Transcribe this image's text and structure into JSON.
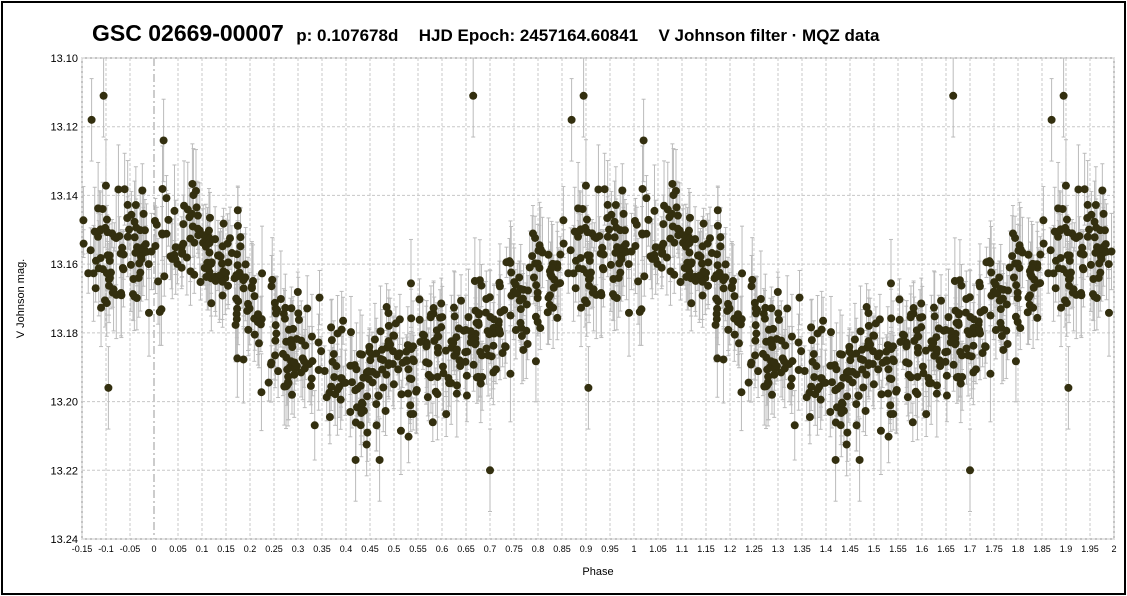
{
  "chart_data": {
    "type": "scatter",
    "title": "GSC 02669-00007",
    "subtitle_parts": [
      "p: 0.107678d",
      "HJD Epoch: 2457164.60841",
      "V Johnson filter  · MQZ data"
    ],
    "xlabel": "Phase",
    "ylabel": "V Johnson mag.",
    "xlim": [
      -0.15,
      2.0
    ],
    "ylim": [
      13.1,
      13.24
    ],
    "y_inverted": true,
    "y_ticks": [
      "13.10",
      "13.12",
      "13.14",
      "13.16",
      "13.18",
      "13.20",
      "13.22",
      "13.24"
    ],
    "x_ticks": [
      "-0.15",
      "-0.1",
      "-0.05",
      "0",
      "0.05",
      "0.1",
      "0.15",
      "0.2",
      "0.25",
      "0.3",
      "0.35",
      "0.4",
      "0.45",
      "0.5",
      "0.55",
      "0.6",
      "0.65",
      "0.7",
      "0.75",
      "0.8",
      "0.85",
      "0.9",
      "0.95",
      "1",
      "1.05",
      "1.1",
      "1.15",
      "1.2",
      "1.25",
      "1.3",
      "1.35",
      "1.4",
      "1.45",
      "1.5",
      "1.55",
      "1.6",
      "1.65",
      "1.7",
      "1.75",
      "1.8",
      "1.85",
      "1.9",
      "1.95",
      "2"
    ],
    "grid": true,
    "marker_color": "#332f0f",
    "errorbar_color": "#bbbbbb",
    "series": [
      {
        "phase_values": [
          0.0,
          0.02,
          0.04,
          0.06,
          0.08,
          0.1,
          0.12,
          0.14,
          0.16,
          0.18,
          0.2,
          0.22,
          0.24,
          0.26,
          0.28,
          0.3,
          0.32,
          0.34,
          0.36,
          0.38,
          0.4,
          0.42,
          0.44,
          0.46,
          0.48,
          0.5,
          0.52,
          0.54,
          0.56,
          0.58,
          0.6,
          0.62,
          0.64,
          0.66,
          0.68,
          0.7,
          0.72,
          0.74,
          0.76,
          0.78,
          0.8,
          0.82,
          0.84,
          0.86,
          0.88,
          0.9,
          0.92,
          0.94,
          0.96,
          0.98
        ],
        "mean_mag": [
          13.158,
          13.156,
          13.154,
          13.152,
          13.152,
          13.153,
          13.155,
          13.158,
          13.162,
          13.166,
          13.17,
          13.174,
          13.178,
          13.181,
          13.184,
          13.186,
          13.188,
          13.19,
          13.191,
          13.192,
          13.192,
          13.192,
          13.191,
          13.19,
          13.189,
          13.188,
          13.187,
          13.186,
          13.186,
          13.186,
          13.186,
          13.186,
          13.185,
          13.184,
          13.182,
          13.18,
          13.177,
          13.174,
          13.171,
          13.168,
          13.165,
          13.162,
          13.16,
          13.158,
          13.157,
          13.156,
          13.156,
          13.156,
          13.157,
          13.158
        ],
        "outliers": [
          {
            "x": -0.105,
            "y": 13.111
          },
          {
            "x": 0.665,
            "y": 13.111
          },
          {
            "x": -0.13,
            "y": 13.118
          },
          {
            "x": 0.7,
            "y": 13.22
          },
          {
            "x": 0.42,
            "y": 13.217
          },
          {
            "x": 0.47,
            "y": 13.217
          },
          {
            "x": -0.095,
            "y": 13.196
          },
          {
            "x": 0.02,
            "y": 13.124
          }
        ]
      }
    ]
  }
}
